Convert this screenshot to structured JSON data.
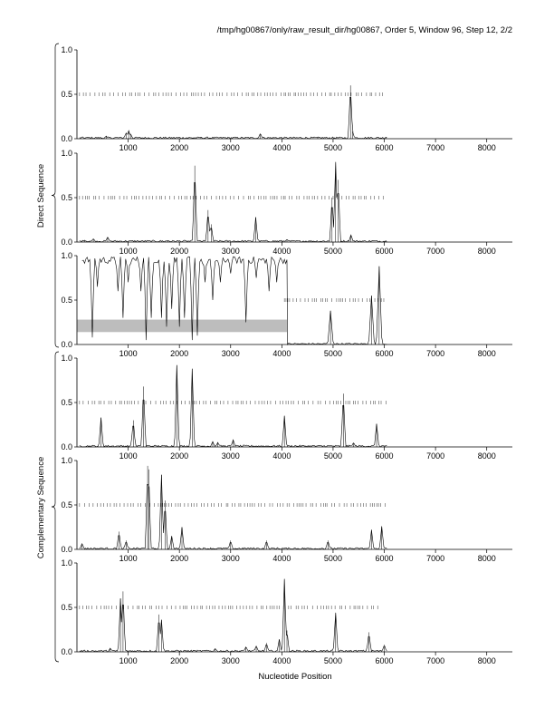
{
  "header": "/tmp/hg00867/only/raw_result_dir/hg00867, Order 5, Window 96, Step 12, 2/2",
  "group_labels": [
    "Direct Sequence",
    "Complementary Sequence"
  ],
  "xlabel": "Nucleotide Position",
  "chart_data": [
    {
      "type": "line",
      "group": "Direct Sequence",
      "xlim": [
        0,
        8500
      ],
      "ylim": [
        0,
        1
      ],
      "xticks": [
        "1000",
        "2000",
        "3000",
        "4000",
        "5000",
        "6000",
        "7000",
        "8000"
      ],
      "yticks": [
        "0.0",
        "0.5",
        "1.0"
      ],
      "hit_marks": {
        "y": 0.5,
        "x_start": 50,
        "x_end": 6050
      },
      "peaks": [
        [
          570,
          0.03
        ],
        [
          960,
          0.07
        ],
        [
          1010,
          0.09
        ],
        [
          1050,
          0.05
        ],
        [
          2420,
          0.02
        ],
        [
          3580,
          0.06
        ],
        [
          4700,
          0.02
        ],
        [
          5340,
          0.6
        ],
        [
          5380,
          0.08
        ],
        [
          6040,
          0.02
        ]
      ]
    },
    {
      "type": "line",
      "group": "Direct Sequence",
      "xlim": [
        0,
        8500
      ],
      "ylim": [
        0,
        1
      ],
      "xticks": [
        "1000",
        "2000",
        "3000",
        "4000",
        "5000",
        "6000",
        "7000",
        "8000"
      ],
      "yticks": [
        "0.0",
        "0.5",
        "1.0"
      ],
      "hit_marks": {
        "y": 0.5,
        "x_start": 50,
        "x_end": 6000
      },
      "peaks": [
        [
          150,
          0.02
        ],
        [
          320,
          0.04
        ],
        [
          600,
          0.06
        ],
        [
          1780,
          0.02
        ],
        [
          2300,
          0.86
        ],
        [
          2560,
          0.36
        ],
        [
          2620,
          0.2
        ],
        [
          3490,
          0.28
        ],
        [
          4100,
          0.03
        ],
        [
          4980,
          0.5
        ],
        [
          5050,
          0.9
        ],
        [
          5100,
          0.7
        ],
        [
          5350,
          0.08
        ]
      ]
    },
    {
      "type": "line",
      "group": "Direct Sequence",
      "xlim": [
        0,
        8500
      ],
      "ylim": [
        0,
        1
      ],
      "xticks": [
        "1000",
        "2000",
        "3000",
        "4000",
        "5000",
        "6000",
        "7000",
        "8000"
      ],
      "yticks": [
        "0.0",
        "0.5",
        "1.0"
      ],
      "hit_marks": {
        "y": 0.5,
        "x_start": 4050,
        "x_end": 6000
      },
      "band": {
        "x": [
          0,
          4100
        ],
        "y": [
          0.14,
          0.28
        ]
      },
      "dips": [
        [
          300,
          0.08
        ],
        [
          400,
          0.65
        ],
        [
          800,
          0.6
        ],
        [
          900,
          0.3
        ],
        [
          1000,
          0.7
        ],
        [
          1250,
          0.6
        ],
        [
          1350,
          0.05
        ],
        [
          1450,
          0.3
        ],
        [
          1650,
          0.3
        ],
        [
          1750,
          0.2
        ],
        [
          1850,
          0.4
        ],
        [
          2000,
          0.2
        ],
        [
          2100,
          0.3
        ],
        [
          2250,
          0.05
        ],
        [
          2350,
          0.1
        ],
        [
          2500,
          0.7
        ],
        [
          2650,
          0.5
        ],
        [
          2800,
          0.7
        ],
        [
          3000,
          0.8
        ],
        [
          3300,
          0.25
        ],
        [
          3500,
          0.75
        ],
        [
          3750,
          0.6
        ],
        [
          3900,
          0.7
        ]
      ],
      "peaks": [
        [
          4950,
          0.38
        ],
        [
          5750,
          0.55
        ],
        [
          5900,
          0.88
        ]
      ]
    },
    {
      "type": "line",
      "group": "Complementary Sequence",
      "xlim": [
        0,
        8500
      ],
      "ylim": [
        0,
        1
      ],
      "xticks": [
        "1000",
        "2000",
        "3000",
        "4000",
        "5000",
        "6000",
        "7000",
        "8000"
      ],
      "yticks": [
        "0.0",
        "0.5",
        "1.0"
      ],
      "hit_marks": {
        "y": 0.5,
        "x_start": 50,
        "x_end": 6050
      },
      "peaks": [
        [
          470,
          0.33
        ],
        [
          1100,
          0.3
        ],
        [
          1300,
          0.68
        ],
        [
          1950,
          0.92
        ],
        [
          2250,
          0.88
        ],
        [
          2650,
          0.06
        ],
        [
          2750,
          0.05
        ],
        [
          3050,
          0.08
        ],
        [
          4050,
          0.35
        ],
        [
          5200,
          0.6
        ],
        [
          5400,
          0.05
        ],
        [
          5850,
          0.26
        ]
      ]
    },
    {
      "type": "line",
      "group": "Complementary Sequence",
      "xlim": [
        0,
        8500
      ],
      "ylim": [
        0,
        1
      ],
      "xticks": [
        "1000",
        "2000",
        "3000",
        "4000",
        "5000",
        "6000",
        "7000",
        "8000"
      ],
      "yticks": [
        "0.0",
        "0.5",
        "1.0"
      ],
      "hit_marks": {
        "y": 0.5,
        "x_start": 50,
        "x_end": 6050
      },
      "peaks": [
        [
          100,
          0.07
        ],
        [
          820,
          0.2
        ],
        [
          960,
          0.1
        ],
        [
          1380,
          0.94
        ],
        [
          1400,
          0.9
        ],
        [
          1650,
          0.84
        ],
        [
          1720,
          0.55
        ],
        [
          1850,
          0.15
        ],
        [
          2050,
          0.25
        ],
        [
          3000,
          0.1
        ],
        [
          3700,
          0.1
        ],
        [
          4900,
          0.1
        ],
        [
          5750,
          0.22
        ],
        [
          5950,
          0.26
        ]
      ]
    },
    {
      "type": "line",
      "group": "Complementary Sequence",
      "xlim": [
        0,
        8500
      ],
      "ylim": [
        0,
        1
      ],
      "xticks": [
        "1000",
        "2000",
        "3000",
        "4000",
        "5000",
        "6000",
        "7000",
        "8000"
      ],
      "yticks": [
        "0.0",
        "0.5",
        "1.0"
      ],
      "hit_marks": {
        "y": 0.5,
        "x_start": 50,
        "x_end": 5900
      },
      "peaks": [
        [
          650,
          0.04
        ],
        [
          850,
          0.6
        ],
        [
          900,
          0.68
        ],
        [
          1600,
          0.42
        ],
        [
          1650,
          0.36
        ],
        [
          2700,
          0.04
        ],
        [
          3300,
          0.06
        ],
        [
          3500,
          0.07
        ],
        [
          3700,
          0.1
        ],
        [
          3950,
          0.14
        ],
        [
          4050,
          0.82
        ],
        [
          4100,
          0.24
        ],
        [
          5050,
          0.44
        ],
        [
          5700,
          0.22
        ],
        [
          6000,
          0.08
        ]
      ]
    }
  ]
}
